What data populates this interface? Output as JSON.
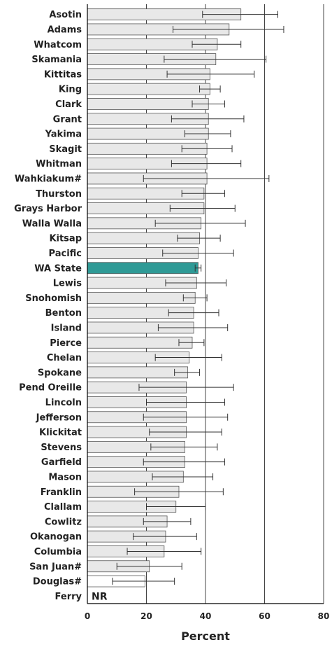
{
  "chart_data": {
    "type": "bar",
    "orientation": "horizontal",
    "xlabel": "Percent",
    "xlim": [
      0,
      80
    ],
    "xticks": [
      0,
      20,
      40,
      60,
      80
    ],
    "grid": "vertical",
    "categories": [
      "Asotin",
      "Adams",
      "Whatcom",
      "Skamania",
      "Kittitas",
      "King",
      "Clark",
      "Grant",
      "Yakima",
      "Skagit",
      "Whitman",
      "Wahkiakum#",
      "Thurston",
      "Grays Harbor",
      "Walla Walla",
      "Kitsap",
      "Pacific",
      "WA State",
      "Lewis",
      "Snohomish",
      "Benton",
      "Island",
      "Pierce",
      "Chelan",
      "Spokane",
      "Pend Oreille",
      "Lincoln",
      "Jefferson",
      "Klickitat",
      "Stevens",
      "Garfield",
      "Mason",
      "Franklin",
      "Clallam",
      "Cowlitz",
      "Okanogan",
      "Columbia",
      "San Juan#",
      "Douglas#",
      "Ferry"
    ],
    "values": [
      52,
      48,
      44,
      43.5,
      41.5,
      41.5,
      41,
      41,
      41,
      40.5,
      40.5,
      40.5,
      39.5,
      39.5,
      38.5,
      38,
      37.5,
      37.5,
      37,
      36.5,
      36,
      36,
      35.5,
      34.5,
      34,
      33.5,
      33.5,
      33.5,
      33.5,
      33,
      33,
      32.5,
      31,
      30,
      27,
      26.5,
      26,
      21,
      19.5,
      null
    ],
    "ci_low": [
      39,
      29,
      35.5,
      26,
      27,
      38,
      35.5,
      28.5,
      33,
      32,
      28.5,
      19,
      32,
      28,
      23,
      30.5,
      25.5,
      36.5,
      26.5,
      32.5,
      27.5,
      24,
      31,
      23,
      29.5,
      17.5,
      20,
      19,
      21,
      21.5,
      19,
      22,
      16,
      20,
      19,
      15.5,
      13.5,
      10,
      8.5,
      null
    ],
    "ci_high": [
      64.5,
      66.5,
      52,
      60.5,
      56.5,
      45,
      46.5,
      53,
      48.5,
      49,
      52,
      61.5,
      46.5,
      50,
      53.5,
      45,
      49.5,
      38.5,
      47,
      40.5,
      44.5,
      47.5,
      39.5,
      45.5,
      38,
      49.5,
      46.5,
      47.5,
      45.5,
      44,
      46.5,
      42.5,
      46,
      40,
      35,
      37,
      38.5,
      32,
      29.5,
      null
    ],
    "highlight": "WA State",
    "highlight_color": "#2f9a96",
    "bar_color": "#e8e8e8",
    "open_bar_categories": [
      "Douglas#"
    ],
    "annotations": [
      {
        "category": "Ferry",
        "text": "NR"
      }
    ]
  }
}
